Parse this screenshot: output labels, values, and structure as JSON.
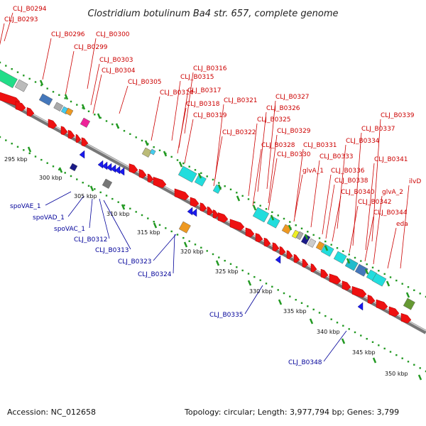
{
  "title": "Clostridium botulinum Ba4 str. 657, complete genome",
  "accession_label": "Accession: NC_012658",
  "summary_label": "Topology: circular; Length: 3,977,794 bp; Genes: 3,799",
  "colors": {
    "forward_gene": "#ee1111",
    "reverse_gene": "#1a1aee",
    "label_red": "#cc0000",
    "label_blue": "#000099",
    "backbone": "#777777",
    "dots": "#229922"
  },
  "ticks": [
    "295 kbp",
    "300 kbp",
    "305 kbp",
    "310 kbp",
    "315 kbp",
    "320 kbp",
    "325 kbp",
    "330 kbp",
    "335 kbp",
    "340 kbp",
    "345 kbp",
    "350 kbp"
  ],
  "forward_labels": [
    "CLJ_B0294",
    "CLJ_B0293",
    "CLJ_B0296",
    "CLJ_B0300",
    "CLJ_B0299",
    "CLJ_B0303",
    "CLJ_B0304",
    "CLJ_B0305",
    "CLJ_B0314",
    "CLJ_B0316",
    "CLJ_B0315",
    "CLJ_B0317",
    "CLJ_B0318",
    "CLJ_B0321",
    "CLJ_B0319",
    "CLJ_B0322",
    "CLJ_B0327",
    "CLJ_B0326",
    "CLJ_B0325",
    "CLJ_B0329",
    "CLJ_B0328",
    "CLJ_B0330",
    "CLJ_B0331",
    "glvA_1",
    "CLJ_B0333",
    "CLJ_B0339",
    "CLJ_B0337",
    "CLJ_B0334",
    "CLJ_B0336",
    "CLJ_B0338",
    "CLJ_B0341",
    "CLJ_B0340",
    "CLJ_B0342",
    "ilvD",
    "glvA_2",
    "CLJ_B0344",
    "eda"
  ],
  "reverse_labels": [
    "spoVAE_1",
    "spoVAD_1",
    "spoVAC_1",
    "CLJ_B0312",
    "CLJ_B0313",
    "CLJ_B0323",
    "CLJ_B0324",
    "CLJ_B0335",
    "CLJ_B0348"
  ]
}
